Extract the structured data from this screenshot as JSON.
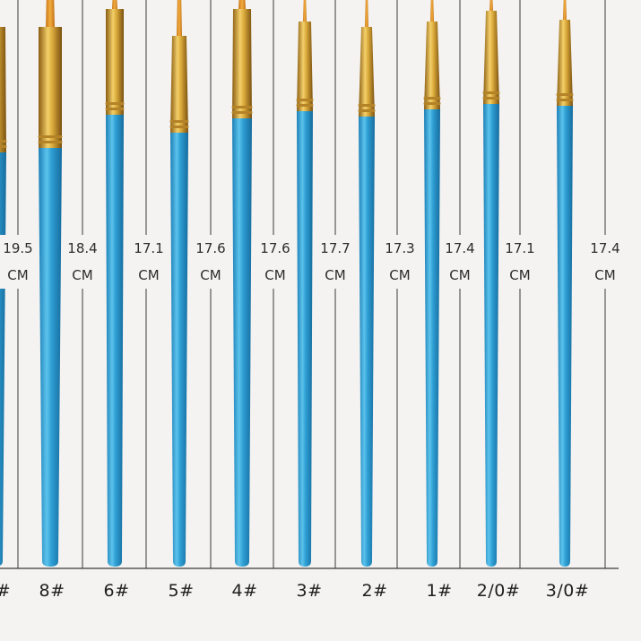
{
  "colors": {
    "background": "#f4f3f1",
    "handle": "#2f9fd4",
    "handle_highlight": "#7fd0f0",
    "ferrule": "#d9a93a",
    "bristle": "#e99a2a",
    "line": "#3a3a3a"
  },
  "unit": "CM",
  "brushes": [
    {
      "size": "#",
      "length": "19.5"
    },
    {
      "size": "8#",
      "length": "18.4"
    },
    {
      "size": "6#",
      "length": "17.1"
    },
    {
      "size": "5#",
      "length": "17.6"
    },
    {
      "size": "4#",
      "length": "17.6"
    },
    {
      "size": "3#",
      "length": "17.7"
    },
    {
      "size": "2#",
      "length": "17.3"
    },
    {
      "size": "1#",
      "length": "17.4"
    },
    {
      "size": "2/0#",
      "length": "17.1"
    },
    {
      "size": "3/0#",
      "length": "17.4"
    }
  ]
}
